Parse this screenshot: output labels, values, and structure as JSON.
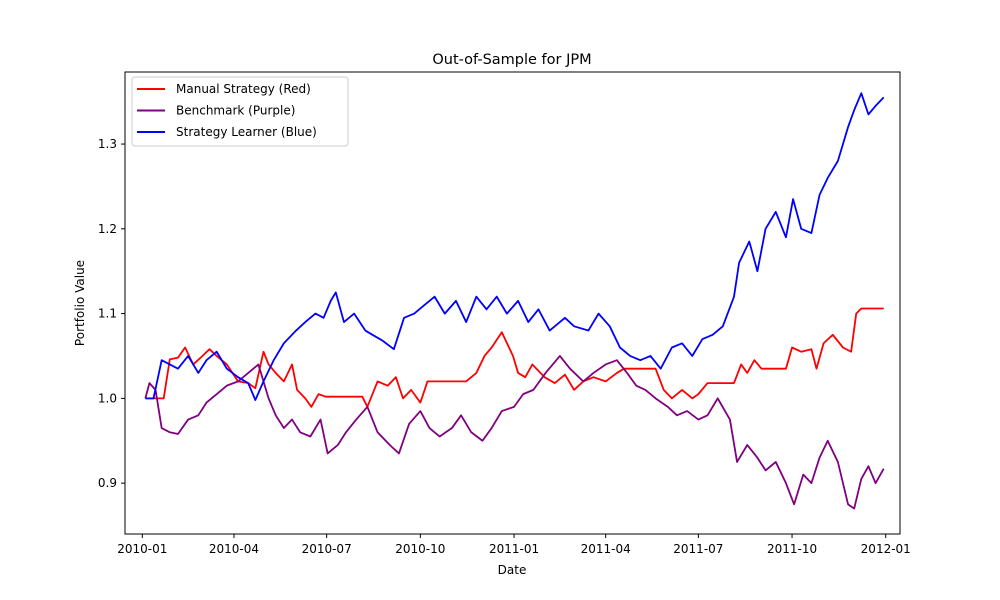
{
  "chart_data": {
    "type": "line",
    "title": "Out-of-Sample for JPM",
    "xlabel": "Date",
    "ylabel": "Portfolio Value",
    "xlim": [
      "2009-12-15",
      "2012-01-15"
    ],
    "ylim": [
      0.84,
      1.385
    ],
    "grid": false,
    "legend_position": "top-left",
    "x_ticks": [
      "2010-01",
      "2010-04",
      "2010-07",
      "2010-10",
      "2011-01",
      "2011-04",
      "2011-07",
      "2011-10",
      "2012-01"
    ],
    "y_ticks": [
      0.9,
      1.0,
      1.1,
      1.2,
      1.3
    ],
    "y_tick_labels": [
      "0.9",
      "1.0",
      "1.1",
      "1.2",
      "1.3"
    ],
    "series": [
      {
        "name": "Manual Strategy (Red)",
        "color": "#ff0000",
        "points": [
          [
            "2010-01-04",
            1.0
          ],
          [
            "2010-01-15",
            1.0
          ],
          [
            "2010-01-22",
            1.0
          ],
          [
            "2010-01-28",
            1.046
          ],
          [
            "2010-02-05",
            1.048
          ],
          [
            "2010-02-12",
            1.06
          ],
          [
            "2010-02-20",
            1.04
          ],
          [
            "2010-03-01",
            1.05
          ],
          [
            "2010-03-08",
            1.058
          ],
          [
            "2010-03-15",
            1.05
          ],
          [
            "2010-03-25",
            1.04
          ],
          [
            "2010-04-05",
            1.02
          ],
          [
            "2010-04-15",
            1.018
          ],
          [
            "2010-04-22",
            1.012
          ],
          [
            "2010-04-30",
            1.055
          ],
          [
            "2010-05-05",
            1.04
          ],
          [
            "2010-05-12",
            1.03
          ],
          [
            "2010-05-20",
            1.02
          ],
          [
            "2010-05-28",
            1.04
          ],
          [
            "2010-06-02",
            1.01
          ],
          [
            "2010-06-10",
            1.0
          ],
          [
            "2010-06-16",
            0.99
          ],
          [
            "2010-06-23",
            1.005
          ],
          [
            "2010-06-30",
            1.002
          ],
          [
            "2010-08-05",
            1.002
          ],
          [
            "2010-08-10",
            0.99
          ],
          [
            "2010-08-20",
            1.02
          ],
          [
            "2010-08-30",
            1.015
          ],
          [
            "2010-09-07",
            1.025
          ],
          [
            "2010-09-14",
            1.0
          ],
          [
            "2010-09-22",
            1.01
          ],
          [
            "2010-10-01",
            0.995
          ],
          [
            "2010-10-08",
            1.02
          ],
          [
            "2010-11-15",
            1.02
          ],
          [
            "2010-11-25",
            1.03
          ],
          [
            "2010-12-03",
            1.05
          ],
          [
            "2010-12-10",
            1.06
          ],
          [
            "2010-12-20",
            1.078
          ],
          [
            "2010-12-31",
            1.05
          ],
          [
            "2011-01-05",
            1.03
          ],
          [
            "2011-01-12",
            1.025
          ],
          [
            "2011-01-19",
            1.04
          ],
          [
            "2011-01-31",
            1.025
          ],
          [
            "2011-02-10",
            1.018
          ],
          [
            "2011-02-20",
            1.028
          ],
          [
            "2011-03-01",
            1.01
          ],
          [
            "2011-03-10",
            1.02
          ],
          [
            "2011-03-20",
            1.025
          ],
          [
            "2011-04-01",
            1.02
          ],
          [
            "2011-04-12",
            1.03
          ],
          [
            "2011-04-19",
            1.035
          ],
          [
            "2011-05-20",
            1.035
          ],
          [
            "2011-05-28",
            1.01
          ],
          [
            "2011-06-05",
            1.0
          ],
          [
            "2011-06-15",
            1.01
          ],
          [
            "2011-06-25",
            1.0
          ],
          [
            "2011-07-01",
            1.005
          ],
          [
            "2011-07-10",
            1.018
          ],
          [
            "2011-08-05",
            1.018
          ],
          [
            "2011-08-12",
            1.04
          ],
          [
            "2011-08-18",
            1.03
          ],
          [
            "2011-08-25",
            1.045
          ],
          [
            "2011-09-01",
            1.035
          ],
          [
            "2011-09-25",
            1.035
          ],
          [
            "2011-10-01",
            1.06
          ],
          [
            "2011-10-10",
            1.055
          ],
          [
            "2011-10-20",
            1.058
          ],
          [
            "2011-10-25",
            1.035
          ],
          [
            "2011-11-01",
            1.065
          ],
          [
            "2011-11-10",
            1.075
          ],
          [
            "2011-11-20",
            1.06
          ],
          [
            "2011-11-28",
            1.055
          ],
          [
            "2011-12-03",
            1.1
          ],
          [
            "2011-12-08",
            1.106
          ],
          [
            "2011-12-30",
            1.106
          ]
        ]
      },
      {
        "name": "Benchmark (Purple)",
        "color": "#800080",
        "points": [
          [
            "2010-01-04",
            1.0
          ],
          [
            "2010-01-08",
            1.018
          ],
          [
            "2010-01-14",
            1.01
          ],
          [
            "2010-01-20",
            0.965
          ],
          [
            "2010-01-28",
            0.96
          ],
          [
            "2010-02-05",
            0.958
          ],
          [
            "2010-02-15",
            0.975
          ],
          [
            "2010-02-25",
            0.98
          ],
          [
            "2010-03-05",
            0.995
          ],
          [
            "2010-03-15",
            1.005
          ],
          [
            "2010-03-25",
            1.015
          ],
          [
            "2010-04-05",
            1.02
          ],
          [
            "2010-04-15",
            1.03
          ],
          [
            "2010-04-25",
            1.04
          ],
          [
            "2010-05-05",
            1.0
          ],
          [
            "2010-05-12",
            0.98
          ],
          [
            "2010-05-20",
            0.965
          ],
          [
            "2010-05-28",
            0.975
          ],
          [
            "2010-06-05",
            0.96
          ],
          [
            "2010-06-15",
            0.955
          ],
          [
            "2010-06-25",
            0.975
          ],
          [
            "2010-07-02",
            0.935
          ],
          [
            "2010-07-12",
            0.945
          ],
          [
            "2010-07-20",
            0.96
          ],
          [
            "2010-07-30",
            0.975
          ],
          [
            "2010-08-10",
            0.99
          ],
          [
            "2010-08-20",
            0.96
          ],
          [
            "2010-09-01",
            0.945
          ],
          [
            "2010-09-10",
            0.935
          ],
          [
            "2010-09-20",
            0.97
          ],
          [
            "2010-10-01",
            0.985
          ],
          [
            "2010-10-10",
            0.965
          ],
          [
            "2010-10-20",
            0.955
          ],
          [
            "2010-11-01",
            0.965
          ],
          [
            "2010-11-10",
            0.98
          ],
          [
            "2010-11-20",
            0.96
          ],
          [
            "2010-12-01",
            0.95
          ],
          [
            "2010-12-10",
            0.965
          ],
          [
            "2010-12-20",
            0.985
          ],
          [
            "2011-01-01",
            0.99
          ],
          [
            "2011-01-10",
            1.005
          ],
          [
            "2011-01-20",
            1.01
          ],
          [
            "2011-02-01",
            1.03
          ],
          [
            "2011-02-15",
            1.05
          ],
          [
            "2011-02-25",
            1.035
          ],
          [
            "2011-03-10",
            1.02
          ],
          [
            "2011-03-20",
            1.03
          ],
          [
            "2011-04-01",
            1.04
          ],
          [
            "2011-04-12",
            1.045
          ],
          [
            "2011-04-22",
            1.03
          ],
          [
            "2011-05-01",
            1.015
          ],
          [
            "2011-05-10",
            1.01
          ],
          [
            "2011-05-20",
            1.0
          ],
          [
            "2011-06-01",
            0.99
          ],
          [
            "2011-06-10",
            0.98
          ],
          [
            "2011-06-20",
            0.985
          ],
          [
            "2011-07-01",
            0.975
          ],
          [
            "2011-07-10",
            0.98
          ],
          [
            "2011-07-20",
            1.0
          ],
          [
            "2011-08-01",
            0.975
          ],
          [
            "2011-08-08",
            0.925
          ],
          [
            "2011-08-18",
            0.945
          ],
          [
            "2011-08-28",
            0.93
          ],
          [
            "2011-09-05",
            0.915
          ],
          [
            "2011-09-15",
            0.925
          ],
          [
            "2011-09-25",
            0.9
          ],
          [
            "2011-10-03",
            0.875
          ],
          [
            "2011-10-12",
            0.91
          ],
          [
            "2011-10-20",
            0.9
          ],
          [
            "2011-10-28",
            0.93
          ],
          [
            "2011-11-05",
            0.95
          ],
          [
            "2011-11-15",
            0.925
          ],
          [
            "2011-11-25",
            0.875
          ],
          [
            "2011-12-01",
            0.87
          ],
          [
            "2011-12-08",
            0.905
          ],
          [
            "2011-12-15",
            0.92
          ],
          [
            "2011-12-22",
            0.9
          ],
          [
            "2011-12-30",
            0.917
          ]
        ]
      },
      {
        "name": "Strategy Learner (Blue)",
        "color": "#0000ff",
        "points": [
          [
            "2010-01-04",
            1.0
          ],
          [
            "2010-01-12",
            1.0
          ],
          [
            "2010-01-20",
            1.045
          ],
          [
            "2010-01-28",
            1.04
          ],
          [
            "2010-02-05",
            1.035
          ],
          [
            "2010-02-15",
            1.05
          ],
          [
            "2010-02-25",
            1.03
          ],
          [
            "2010-03-05",
            1.045
          ],
          [
            "2010-03-15",
            1.055
          ],
          [
            "2010-03-25",
            1.035
          ],
          [
            "2010-04-05",
            1.025
          ],
          [
            "2010-04-15",
            1.018
          ],
          [
            "2010-04-22",
            0.998
          ],
          [
            "2010-04-30",
            1.02
          ],
          [
            "2010-05-10",
            1.045
          ],
          [
            "2010-05-20",
            1.065
          ],
          [
            "2010-06-01",
            1.08
          ],
          [
            "2010-06-10",
            1.09
          ],
          [
            "2010-06-20",
            1.1
          ],
          [
            "2010-06-28",
            1.095
          ],
          [
            "2010-07-05",
            1.115
          ],
          [
            "2010-07-10",
            1.125
          ],
          [
            "2010-07-18",
            1.09
          ],
          [
            "2010-07-28",
            1.1
          ],
          [
            "2010-08-08",
            1.08
          ],
          [
            "2010-08-15",
            1.075
          ],
          [
            "2010-08-25",
            1.068
          ],
          [
            "2010-09-05",
            1.058
          ],
          [
            "2010-09-15",
            1.095
          ],
          [
            "2010-09-25",
            1.1
          ],
          [
            "2010-10-05",
            1.11
          ],
          [
            "2010-10-15",
            1.12
          ],
          [
            "2010-10-25",
            1.1
          ],
          [
            "2010-11-05",
            1.115
          ],
          [
            "2010-11-15",
            1.09
          ],
          [
            "2010-11-25",
            1.12
          ],
          [
            "2010-12-05",
            1.105
          ],
          [
            "2010-12-15",
            1.12
          ],
          [
            "2010-12-25",
            1.1
          ],
          [
            "2011-01-05",
            1.115
          ],
          [
            "2011-01-15",
            1.09
          ],
          [
            "2011-01-25",
            1.105
          ],
          [
            "2011-02-05",
            1.08
          ],
          [
            "2011-02-20",
            1.095
          ],
          [
            "2011-03-01",
            1.085
          ],
          [
            "2011-03-15",
            1.08
          ],
          [
            "2011-03-25",
            1.1
          ],
          [
            "2011-04-05",
            1.085
          ],
          [
            "2011-04-15",
            1.06
          ],
          [
            "2011-04-25",
            1.05
          ],
          [
            "2011-05-05",
            1.045
          ],
          [
            "2011-05-15",
            1.05
          ],
          [
            "2011-05-25",
            1.035
          ],
          [
            "2011-06-05",
            1.06
          ],
          [
            "2011-06-15",
            1.065
          ],
          [
            "2011-06-25",
            1.05
          ],
          [
            "2011-07-05",
            1.07
          ],
          [
            "2011-07-15",
            1.075
          ],
          [
            "2011-07-25",
            1.085
          ],
          [
            "2011-08-05",
            1.12
          ],
          [
            "2011-08-10",
            1.16
          ],
          [
            "2011-08-20",
            1.185
          ],
          [
            "2011-08-28",
            1.15
          ],
          [
            "2011-09-05",
            1.2
          ],
          [
            "2011-09-15",
            1.22
          ],
          [
            "2011-09-25",
            1.19
          ],
          [
            "2011-10-02",
            1.235
          ],
          [
            "2011-10-10",
            1.2
          ],
          [
            "2011-10-20",
            1.195
          ],
          [
            "2011-10-28",
            1.24
          ],
          [
            "2011-11-05",
            1.26
          ],
          [
            "2011-11-15",
            1.28
          ],
          [
            "2011-11-25",
            1.32
          ],
          [
            "2011-12-01",
            1.34
          ],
          [
            "2011-12-08",
            1.36
          ],
          [
            "2011-12-15",
            1.335
          ],
          [
            "2011-12-22",
            1.345
          ],
          [
            "2011-12-30",
            1.355
          ]
        ]
      }
    ]
  }
}
